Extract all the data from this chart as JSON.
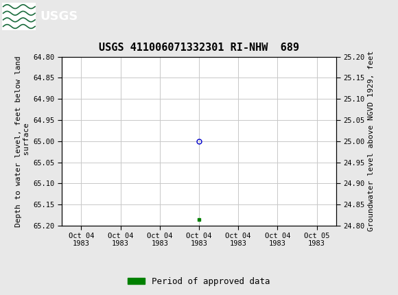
{
  "title": "USGS 411006071332301 RI-NHW  689",
  "left_ylabel": "Depth to water level, feet below land\n surface",
  "right_ylabel": "Groundwater level above NGVD 1929, feet",
  "ylim_left": [
    64.8,
    65.2
  ],
  "y_ticks_left": [
    64.8,
    64.85,
    64.9,
    64.95,
    65.0,
    65.05,
    65.1,
    65.15,
    65.2
  ],
  "y_ticks_right": [
    25.2,
    25.15,
    25.1,
    25.05,
    25.0,
    24.95,
    24.9,
    24.85,
    24.8
  ],
  "x_tick_labels": [
    "Oct 04\n1983",
    "Oct 04\n1983",
    "Oct 04\n1983",
    "Oct 04\n1983",
    "Oct 04\n1983",
    "Oct 04\n1983",
    "Oct 05\n1983"
  ],
  "x_tick_positions": [
    0,
    1,
    2,
    3,
    4,
    5,
    6
  ],
  "xlim": [
    -0.5,
    6.5
  ],
  "blue_point_x": 3,
  "blue_point_y": 65.0,
  "green_point_x": 3,
  "green_point_y": 65.185,
  "legend_label": "Period of approved data",
  "legend_color": "#008000",
  "blue_color": "#0000CC",
  "grid_color": "#c8c8c8",
  "bg_color": "#e8e8e8",
  "plot_bg_color": "#ffffff",
  "header_color": "#1a6b3c",
  "title_fontsize": 11,
  "axis_label_fontsize": 8,
  "tick_fontsize": 7.5,
  "legend_fontsize": 9
}
